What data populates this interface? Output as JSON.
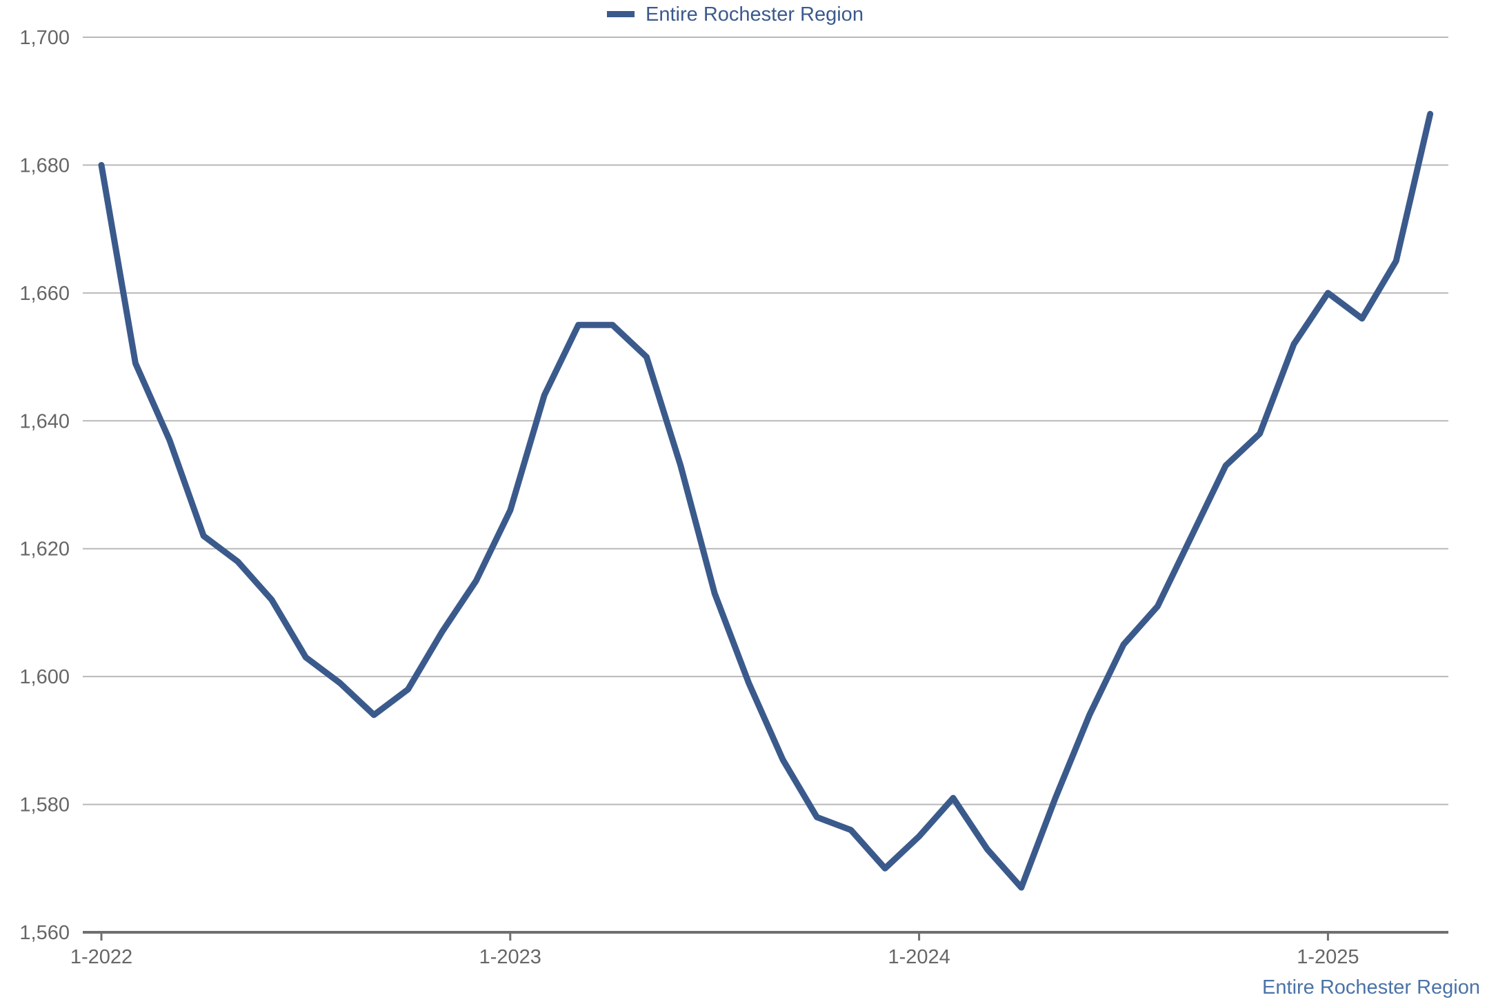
{
  "legend": {
    "label": "Entire Rochester Region",
    "color": "#3b5a8c",
    "placement": "top-center"
  },
  "footer_label": "Entire Rochester Region",
  "chart_data": {
    "type": "line",
    "x_tick_labels": [
      "1-2022",
      "1-2023",
      "1-2024",
      "1-2025"
    ],
    "y_tick_labels": [
      "1,560",
      "1,580",
      "1,600",
      "1,620",
      "1,640",
      "1,660",
      "1,680",
      "1,700"
    ],
    "ylim": [
      1560,
      1700
    ],
    "y_ticks": [
      1560,
      1580,
      1600,
      1620,
      1640,
      1660,
      1680,
      1700
    ],
    "grid": "horizontal",
    "x": [
      "1-2022",
      "2-2022",
      "3-2022",
      "4-2022",
      "5-2022",
      "6-2022",
      "7-2022",
      "8-2022",
      "9-2022",
      "10-2022",
      "11-2022",
      "12-2022",
      "1-2023",
      "2-2023",
      "3-2023",
      "4-2023",
      "5-2023",
      "6-2023",
      "7-2023",
      "8-2023",
      "9-2023",
      "10-2023",
      "11-2023",
      "12-2023",
      "1-2024",
      "2-2024",
      "3-2024",
      "4-2024",
      "5-2024",
      "6-2024",
      "7-2024",
      "8-2024",
      "9-2024",
      "10-2024",
      "11-2024",
      "12-2024",
      "1-2025",
      "2-2025",
      "3-2025",
      "4-2025"
    ],
    "series": [
      {
        "name": "Entire Rochester Region",
        "color": "#3b5a8c",
        "values": [
          1680,
          1649,
          1637,
          1622,
          1618,
          1612,
          1603,
          1599,
          1594,
          1598,
          1607,
          1615,
          1626,
          1644,
          1655,
          1655,
          1650,
          1633,
          1613,
          1599,
          1587,
          1578,
          1576,
          1570,
          1575,
          1581,
          1573,
          1567,
          1581,
          1594,
          1605,
          1611,
          1622,
          1633,
          1638,
          1652,
          1660,
          1656,
          1665,
          1688
        ]
      }
    ]
  }
}
